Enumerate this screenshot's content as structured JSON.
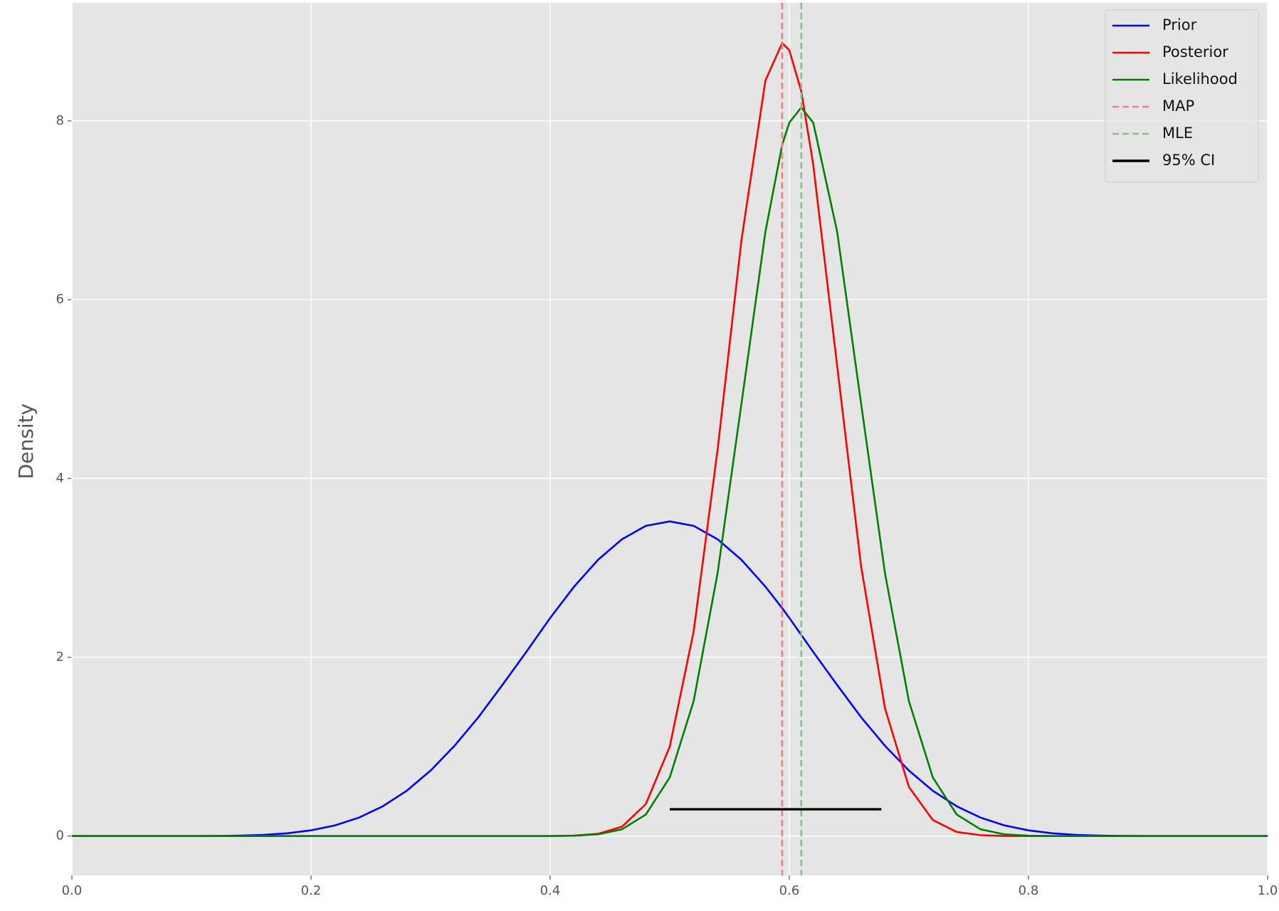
{
  "chart_data": {
    "type": "line",
    "ylabel": "Density",
    "x": [
      0,
      0.02,
      0.04,
      0.06,
      0.08,
      0.1,
      0.12,
      0.14,
      0.16,
      0.18,
      0.2,
      0.22,
      0.24,
      0.26,
      0.28,
      0.3,
      0.32,
      0.34,
      0.36,
      0.38,
      0.4,
      0.42,
      0.44,
      0.46,
      0.48,
      0.5,
      0.52,
      0.54,
      0.56,
      0.58,
      0.594,
      0.6,
      0.61,
      0.62,
      0.64,
      0.66,
      0.68,
      0.7,
      0.72,
      0.74,
      0.76,
      0.78,
      0.8,
      0.82,
      0.84,
      0.86,
      0.88,
      0.9,
      0.92,
      0.94,
      0.96,
      0.98,
      1
    ],
    "series": [
      {
        "name": "Prior",
        "color": "#0000ff",
        "values": [
          0,
          0,
          0,
          0,
          0.0001,
          0.0004,
          0.0015,
          0.0049,
          0.0132,
          0.031,
          0.064,
          0.119,
          0.206,
          0.333,
          0.507,
          0.733,
          1.01,
          1.33,
          1.69,
          2.06,
          2.44,
          2.79,
          3.09,
          3.32,
          3.47,
          3.52,
          3.47,
          3.32,
          3.09,
          2.79,
          2.55,
          2.44,
          2.25,
          2.06,
          1.69,
          1.33,
          1.01,
          0.733,
          0.507,
          0.333,
          0.206,
          0.119,
          0.064,
          0.031,
          0.0132,
          0.0049,
          0.0015,
          0.0004,
          0.0001,
          0,
          0,
          0,
          0
        ]
      },
      {
        "name": "Posterior",
        "color": "#ff0000",
        "values": [
          0,
          0,
          0,
          0,
          0,
          0,
          0,
          0,
          0,
          0,
          0,
          0,
          0,
          0,
          0,
          0,
          0,
          0,
          0,
          0,
          0.0008,
          0.005,
          0.025,
          0.105,
          0.358,
          1.0,
          2.29,
          4.32,
          6.67,
          8.45,
          8.87,
          8.79,
          8.33,
          7.51,
          5.26,
          3.02,
          1.43,
          0.55,
          0.18,
          0.046,
          0.0098,
          0.0017,
          0.0002,
          0,
          0,
          0,
          0,
          0,
          0,
          0,
          0,
          0,
          0
        ]
      },
      {
        "name": "Likelihood",
        "color": "#008000",
        "values": [
          0,
          0,
          0,
          0,
          0,
          0,
          0,
          0,
          0,
          0,
          0,
          0,
          0,
          0,
          0,
          0,
          0,
          0,
          0,
          0,
          0.0008,
          0.0044,
          0.0198,
          0.075,
          0.241,
          0.656,
          1.51,
          2.94,
          4.84,
          6.76,
          7.73,
          7.98,
          8.15,
          7.98,
          6.76,
          4.84,
          2.94,
          1.51,
          0.656,
          0.241,
          0.075,
          0.0198,
          0.0044,
          0.0008,
          0,
          0,
          0,
          0,
          0,
          0,
          0,
          0,
          0
        ]
      }
    ],
    "vlines": [
      {
        "name": "MAP",
        "x": 0.594,
        "color": "#f08080"
      },
      {
        "name": "MLE",
        "x": 0.61,
        "color": "#8fbc8f"
      }
    ],
    "interval": {
      "name": "95% CI",
      "lo": 0.5,
      "hi": 0.677,
      "y": 0.3,
      "color": "#000000"
    },
    "xlim": [
      0,
      1
    ],
    "ylim": [
      -0.44,
      9.32
    ],
    "xticks": [
      {
        "value": 0,
        "label": "0.0"
      },
      0.2,
      0.4,
      0.6,
      0.8,
      {
        "value": 1,
        "label": "1.0"
      }
    ],
    "yticks": [
      0,
      2,
      4,
      6,
      8
    ],
    "grid": true,
    "legend": "upper right"
  }
}
